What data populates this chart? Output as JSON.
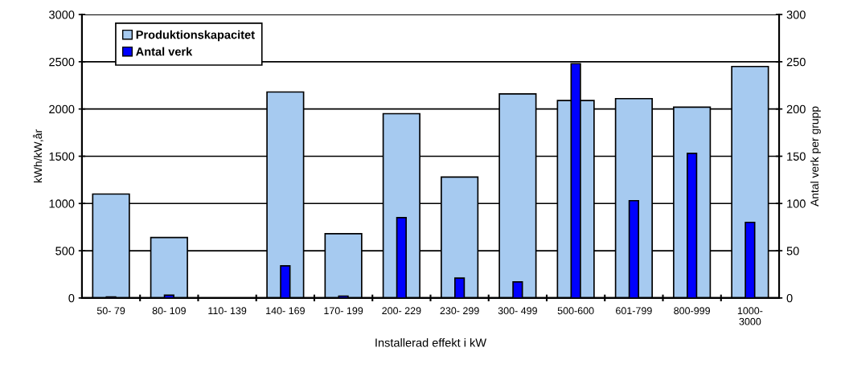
{
  "chart_data": {
    "type": "bar",
    "xlabel": "Installerad effekt i kW",
    "ylabel": "kWh/kW,år",
    "y2label": "Antal verk per grupp",
    "categories": [
      "50- 79",
      "80- 109",
      "110- 139",
      "140- 169",
      "170- 199",
      "200- 229",
      "230- 299",
      "300- 499",
      "500-600",
      "601-799",
      "800-999",
      "1000-\n3000"
    ],
    "series": [
      {
        "name": "Produktionskapacitet",
        "color": "#a6caf0",
        "values": [
          1100,
          640,
          null,
          2180,
          680,
          1950,
          1280,
          2160,
          2090,
          2110,
          2020,
          2450
        ]
      },
      {
        "name": "Antal verk",
        "color": "#0000ff",
        "axis": "y2",
        "values": [
          1,
          3,
          null,
          34,
          2,
          85,
          21,
          17,
          248,
          103,
          153,
          80
        ]
      }
    ],
    "ylim": [
      0,
      3000
    ],
    "yticks": [
      0,
      500,
      1000,
      1500,
      2000,
      2500,
      3000
    ],
    "y2lim": [
      0,
      300
    ],
    "y2ticks": [
      0,
      50,
      100,
      150,
      200,
      250,
      300
    ],
    "grid": "y",
    "legend": "top left"
  }
}
